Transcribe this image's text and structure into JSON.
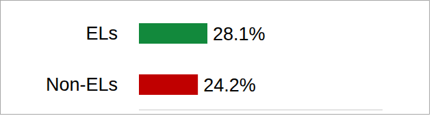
{
  "chart_data": {
    "type": "bar",
    "orientation": "horizontal",
    "categories": [
      "ELs",
      "Non-ELs"
    ],
    "values": [
      28.1,
      24.2
    ],
    "value_labels": [
      "28.1%",
      "24.2%"
    ],
    "colors": [
      "#12893c",
      "#c00000"
    ],
    "xlim": [
      0,
      100
    ],
    "tick_labels": "y",
    "data_labels": true,
    "grid": false
  }
}
